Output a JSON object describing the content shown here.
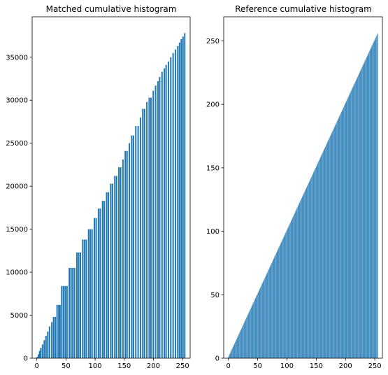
{
  "chart_data": [
    {
      "type": "bar",
      "title": "Matched cumulative histogram",
      "xlabel": "",
      "ylabel": "",
      "xlim": [
        -8,
        263
      ],
      "ylim": [
        0,
        39700
      ],
      "xticks": [
        0,
        50,
        100,
        150,
        200,
        250
      ],
      "yticks": [
        0,
        5000,
        10000,
        15000,
        20000,
        25000,
        30000,
        35000
      ],
      "grid": false,
      "bar_color": "#1f77b4",
      "bars": [
        {
          "x": 1,
          "y": 150
        },
        {
          "x": 3,
          "y": 450
        },
        {
          "x": 5,
          "y": 850
        },
        {
          "x": 7,
          "y": 1200
        },
        {
          "x": 10,
          "y": 1600
        },
        {
          "x": 13,
          "y": 2100
        },
        {
          "x": 16,
          "y": 2600
        },
        {
          "x": 19,
          "y": 3100
        },
        {
          "x": 22,
          "y": 3700
        },
        {
          "x": 26,
          "y": 4200
        },
        {
          "x": 29,
          "y": 4800
        },
        {
          "x": 32,
          "y": 4800
        },
        {
          "x": 35,
          "y": 6200
        },
        {
          "x": 38,
          "y": 6200
        },
        {
          "x": 40,
          "y": 6200
        },
        {
          "x": 43,
          "y": 8400
        },
        {
          "x": 46,
          "y": 8400
        },
        {
          "x": 49,
          "y": 8400
        },
        {
          "x": 52,
          "y": 8400
        },
        {
          "x": 56,
          "y": 10500
        },
        {
          "x": 59,
          "y": 10500
        },
        {
          "x": 62,
          "y": 10500
        },
        {
          "x": 65,
          "y": 10500
        },
        {
          "x": 69,
          "y": 12300
        },
        {
          "x": 72,
          "y": 12300
        },
        {
          "x": 75,
          "y": 12300
        },
        {
          "x": 79,
          "y": 13800
        },
        {
          "x": 82,
          "y": 13800
        },
        {
          "x": 85,
          "y": 13800
        },
        {
          "x": 89,
          "y": 15000
        },
        {
          "x": 92,
          "y": 15000
        },
        {
          "x": 95,
          "y": 15000
        },
        {
          "x": 99,
          "y": 16300
        },
        {
          "x": 102,
          "y": 16300
        },
        {
          "x": 106,
          "y": 17400
        },
        {
          "x": 109,
          "y": 17400
        },
        {
          "x": 113,
          "y": 18300
        },
        {
          "x": 116,
          "y": 18300
        },
        {
          "x": 120,
          "y": 19300
        },
        {
          "x": 123,
          "y": 19300
        },
        {
          "x": 127,
          "y": 20300
        },
        {
          "x": 130,
          "y": 20300
        },
        {
          "x": 134,
          "y": 21200
        },
        {
          "x": 137,
          "y": 21200
        },
        {
          "x": 141,
          "y": 22200
        },
        {
          "x": 144,
          "y": 22200
        },
        {
          "x": 148,
          "y": 23100
        },
        {
          "x": 152,
          "y": 24100
        },
        {
          "x": 155,
          "y": 24100
        },
        {
          "x": 159,
          "y": 25000
        },
        {
          "x": 163,
          "y": 25900
        },
        {
          "x": 166,
          "y": 25900
        },
        {
          "x": 170,
          "y": 27000
        },
        {
          "x": 174,
          "y": 27000
        },
        {
          "x": 178,
          "y": 28000
        },
        {
          "x": 182,
          "y": 29000
        },
        {
          "x": 185,
          "y": 29000
        },
        {
          "x": 189,
          "y": 29800
        },
        {
          "x": 193,
          "y": 30300
        },
        {
          "x": 196,
          "y": 30300
        },
        {
          "x": 200,
          "y": 31100
        },
        {
          "x": 204,
          "y": 31700
        },
        {
          "x": 208,
          "y": 32200
        },
        {
          "x": 211,
          "y": 32700
        },
        {
          "x": 215,
          "y": 33300
        },
        {
          "x": 219,
          "y": 33700
        },
        {
          "x": 222,
          "y": 34100
        },
        {
          "x": 226,
          "y": 34500
        },
        {
          "x": 230,
          "y": 35000
        },
        {
          "x": 234,
          "y": 35500
        },
        {
          "x": 238,
          "y": 35900
        },
        {
          "x": 242,
          "y": 36300
        },
        {
          "x": 245,
          "y": 36700
        },
        {
          "x": 248,
          "y": 37100
        },
        {
          "x": 251,
          "y": 37400
        },
        {
          "x": 254,
          "y": 37800
        }
      ]
    },
    {
      "type": "bar",
      "title": "Reference cumulative histogram",
      "xlabel": "",
      "ylabel": "",
      "xlim": [
        -8,
        263
      ],
      "ylim": [
        0,
        269
      ],
      "xticks": [
        0,
        50,
        100,
        150,
        200,
        250
      ],
      "yticks": [
        0,
        50,
        100,
        150,
        200,
        250
      ],
      "grid": false,
      "bar_color": "#1f77b4",
      "bar_rule": "bars at every x value from 0 to 255, each with height equal to x + 1",
      "bars_x_range": [
        0,
        255
      ]
    }
  ]
}
